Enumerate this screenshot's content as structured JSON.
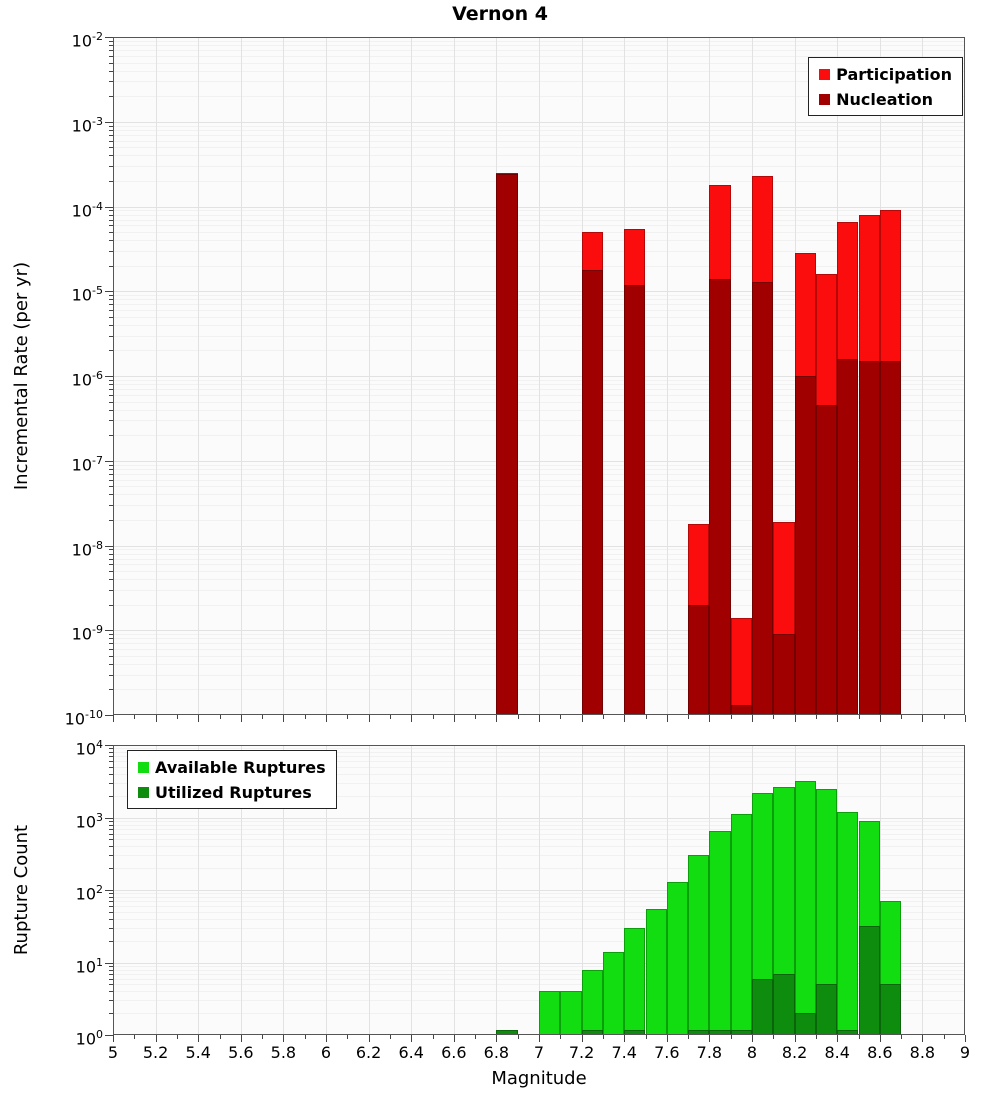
{
  "title": "Vernon 4",
  "chart_data": [
    {
      "type": "bar",
      "title": "Vernon 4",
      "xlabel": "",
      "ylabel": "Incremental Rate (per yr)",
      "yscale": "log",
      "xlim": [
        5,
        9
      ],
      "ylim": [
        1e-10,
        0.01
      ],
      "bin_width": 0.1,
      "grid": true,
      "legend_position": "top-right",
      "ytick_labels": [
        "10^-2",
        "10^-3",
        "10^-4",
        "10^-5",
        "10^-6",
        "10^-7",
        "10^-8",
        "10^-9",
        "10^-10"
      ],
      "xticks": [
        5,
        5.2,
        5.4,
        5.6,
        5.8,
        6,
        6.2,
        6.4,
        6.6,
        6.8,
        7,
        7.2,
        7.4,
        7.6,
        7.8,
        8,
        8.2,
        8.4,
        8.6,
        8.8,
        9
      ],
      "xtick_labels": [],
      "legend": {
        "position": "top-right",
        "entries": [
          {
            "label": "Participation",
            "color": "#FB0D0D"
          },
          {
            "label": "Nucleation",
            "color": "#A00000"
          }
        ]
      },
      "series": [
        {
          "name": "Participation",
          "color": "#FB0D0D",
          "x": [
            6.85,
            7.25,
            7.45,
            7.75,
            7.85,
            7.95,
            8.05,
            8.15,
            8.25,
            8.35,
            8.45,
            8.55,
            8.65
          ],
          "y": [
            0.00025,
            5e-05,
            5.5e-05,
            1.8e-08,
            0.00018,
            1.4e-09,
            0.00023,
            1.9e-08,
            2.8e-05,
            1.6e-05,
            6.5e-05,
            8e-05,
            9e-05
          ]
        },
        {
          "name": "Nucleation",
          "color": "#A00000",
          "x": [
            6.85,
            7.25,
            7.45,
            7.75,
            7.85,
            7.95,
            8.05,
            8.15,
            8.25,
            8.35,
            8.45,
            8.55,
            8.65
          ],
          "y": [
            0.00024,
            1.8e-05,
            1.2e-05,
            2e-09,
            1.4e-05,
            1.3e-10,
            1.3e-05,
            9e-10,
            1e-06,
            4.5e-07,
            1.6e-06,
            1.5e-06,
            1.5e-06
          ]
        }
      ]
    },
    {
      "type": "bar",
      "title": "",
      "xlabel": "Magnitude",
      "ylabel": "Rupture Count",
      "yscale": "log",
      "xlim": [
        5,
        9
      ],
      "ylim": [
        1,
        10000.0
      ],
      "bin_width": 0.1,
      "grid": true,
      "legend_position": "top-left",
      "ytick_labels": [
        "10^4",
        "10^3",
        "10^2",
        "10^1",
        "10^0"
      ],
      "xticks": [
        5,
        5.2,
        5.4,
        5.6,
        5.8,
        6,
        6.2,
        6.4,
        6.6,
        6.8,
        7,
        7.2,
        7.4,
        7.6,
        7.8,
        8,
        8.2,
        8.4,
        8.6,
        8.8,
        9
      ],
      "xtick_labels": [
        "5",
        "5.2",
        "5.4",
        "5.6",
        "5.8",
        "6",
        "6.2",
        "6.4",
        "6.6",
        "6.8",
        "7",
        "7.2",
        "7.4",
        "7.6",
        "7.8",
        "8",
        "8.2",
        "8.4",
        "8.6",
        "8.8",
        "9"
      ],
      "legend": {
        "position": "top-left",
        "entries": [
          {
            "label": "Available Ruptures",
            "color": "#11DD11"
          },
          {
            "label": "Utilized Ruptures",
            "color": "#0E8C0E"
          }
        ]
      },
      "series": [
        {
          "name": "Available Ruptures",
          "color": "#11DD11",
          "x": [
            6.85,
            7.05,
            7.15,
            7.25,
            7.35,
            7.45,
            7.55,
            7.65,
            7.75,
            7.85,
            7.95,
            8.05,
            8.15,
            8.25,
            8.35,
            8.45,
            8.55,
            8.65
          ],
          "y": [
            1,
            4,
            4,
            8,
            14,
            30,
            55,
            130,
            300,
            650,
            1100,
            2200,
            2600,
            3200,
            2500,
            1200,
            900,
            70
          ]
        },
        {
          "name": "Utilized Ruptures",
          "color": "#0E8C0E",
          "x": [
            6.85,
            7.25,
            7.45,
            7.75,
            7.85,
            7.95,
            8.05,
            8.15,
            8.25,
            8.35,
            8.45,
            8.55,
            8.65
          ],
          "y": [
            1,
            1,
            1,
            1,
            1,
            1,
            6,
            7,
            2,
            5,
            1,
            32,
            5
          ]
        }
      ]
    }
  ]
}
